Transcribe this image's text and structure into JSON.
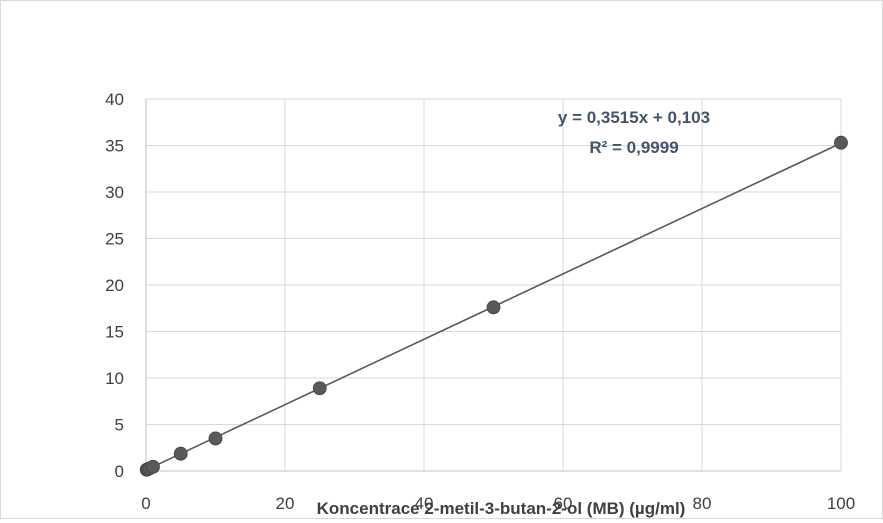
{
  "chart_data": {
    "type": "scatter",
    "title": "",
    "xlabel": "Koncentrace 2-metil-3-butan-2-ol (MB) (µg/ml)",
    "ylabel": "",
    "xlim": [
      0,
      100
    ],
    "ylim": [
      0,
      40
    ],
    "x_ticks": [
      "0",
      "20",
      "40",
      "60",
      "80",
      "100"
    ],
    "y_ticks": [
      "0",
      "5",
      "10",
      "15",
      "20",
      "25",
      "30",
      "35",
      "40"
    ],
    "grid": true,
    "series": [
      {
        "x": [
          0.1,
          0.25,
          0.5,
          1,
          5,
          10,
          25,
          50,
          100
        ],
        "y": [
          0.14,
          0.19,
          0.28,
          0.45,
          1.86,
          3.5,
          8.9,
          17.6,
          35.3
        ],
        "marker_color": "#595959"
      }
    ],
    "trendline": {
      "type": "linear",
      "slope": 0.3515,
      "intercept": 0.103,
      "equation": "y = 0,3515x + 0,103",
      "r_squared": "R² = 0,9999",
      "color": "#595959"
    },
    "legend": "none"
  }
}
